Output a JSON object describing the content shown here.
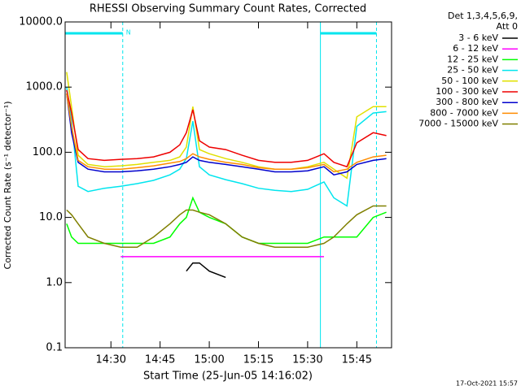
{
  "chart_data": {
    "type": "line",
    "title": "RHESSI Observing Summary Count Rates, Corrected",
    "x_label": "Start Time (25-Jun-05 14:16:02)",
    "y_label": "Corrected Count Rate (s⁻¹ detector⁻¹)",
    "footer": "17-Oct-2021 15:57",
    "legend_header": [
      "Det 1,3,4,5,6,9,",
      "Att 0"
    ],
    "legend_position": "outside-right",
    "log_y": true,
    "xlim": [
      856.03,
      955.6
    ],
    "ylim": [
      0.1,
      10000
    ],
    "xticks": [
      {
        "value": 870,
        "label": "14:30"
      },
      {
        "value": 885,
        "label": "14:45"
      },
      {
        "value": 900,
        "label": "15:00"
      },
      {
        "value": 915,
        "label": "15:15"
      },
      {
        "value": 930,
        "label": "15:30"
      },
      {
        "value": 945,
        "label": "15:45"
      }
    ],
    "yticks": [
      0.1,
      {
        "value": 1,
        "label": "1.0"
      },
      {
        "value": 10,
        "label": "10.0"
      },
      {
        "value": 100,
        "label": "100.0"
      },
      {
        "value": 1000,
        "label": "1000.0"
      },
      {
        "value": 10000,
        "label": "10000.0"
      }
    ],
    "flags": {
      "label": "N",
      "color": "#00e5ee",
      "intervals": [
        [
          856.03,
          873.6
        ],
        [
          933.9,
          951.0
        ]
      ]
    },
    "x": [
      856.5,
      858,
      860,
      863,
      868,
      873,
      878,
      883,
      888,
      891,
      893,
      895,
      897,
      900,
      905,
      910,
      915,
      920,
      925,
      930,
      935,
      938,
      942,
      945,
      950,
      954
    ],
    "series": [
      {
        "name": "3 - 6 keV",
        "color": "#000000",
        "values": [
          null,
          null,
          null,
          null,
          null,
          null,
          null,
          null,
          null,
          null,
          1.5,
          2,
          2,
          1.5,
          1.2,
          null,
          null,
          null,
          null,
          null,
          null,
          null,
          null,
          null,
          null,
          null
        ]
      },
      {
        "name": "6 - 12 keV",
        "color": "#ff00ff",
        "values": [
          null,
          null,
          null,
          null,
          null,
          2.5,
          2.5,
          2.5,
          2.5,
          2.5,
          2.5,
          2.5,
          2.5,
          2.5,
          2.5,
          2.5,
          2.5,
          2.5,
          2.5,
          2.5,
          2.5,
          null,
          null,
          null,
          null,
          null
        ]
      },
      {
        "name": "12 - 25 keV",
        "color": "#00ff00",
        "values": [
          8,
          5,
          4,
          4,
          4,
          4,
          4,
          4,
          5,
          8,
          10,
          20,
          12,
          10,
          8,
          5,
          4,
          4,
          4,
          4,
          5,
          5,
          5,
          5,
          10,
          12
        ]
      },
      {
        "name": "25 - 50 keV",
        "color": "#00e5ee",
        "values": [
          1000,
          300,
          30,
          25,
          28,
          30,
          33,
          37,
          45,
          55,
          80,
          300,
          60,
          45,
          38,
          33,
          28,
          26,
          25,
          27,
          35,
          20,
          15,
          250,
          400,
          420
        ]
      },
      {
        "name": "50 - 100 keV",
        "color": "#e0e000",
        "values": [
          1700,
          500,
          90,
          65,
          60,
          62,
          65,
          70,
          75,
          85,
          120,
          500,
          110,
          95,
          80,
          70,
          60,
          55,
          55,
          60,
          70,
          55,
          40,
          350,
          500,
          500
        ]
      },
      {
        "name": "100 - 300 keV",
        "color": "#ee0000",
        "values": [
          900,
          400,
          110,
          80,
          75,
          78,
          80,
          85,
          100,
          130,
          200,
          450,
          150,
          120,
          110,
          90,
          75,
          70,
          70,
          75,
          95,
          70,
          60,
          140,
          200,
          180
        ]
      },
      {
        "name": "300 - 800 keV",
        "color": "#0000cd",
        "values": [
          800,
          200,
          70,
          55,
          50,
          50,
          52,
          55,
          60,
          65,
          70,
          85,
          75,
          70,
          65,
          60,
          55,
          50,
          50,
          52,
          60,
          45,
          50,
          65,
          75,
          80
        ]
      },
      {
        "name": "800 - 7000 keV",
        "color": "#ff8c00",
        "values": [
          800,
          250,
          75,
          60,
          55,
          55,
          58,
          62,
          68,
          72,
          80,
          95,
          85,
          78,
          70,
          65,
          58,
          55,
          55,
          58,
          65,
          50,
          55,
          70,
          85,
          90
        ]
      },
      {
        "name": "7000 - 15000 keV",
        "color": "#808000",
        "values": [
          13,
          11,
          8,
          5,
          4,
          3.5,
          3.5,
          5,
          8,
          11,
          13,
          13,
          12,
          11,
          8,
          5,
          4,
          3.5,
          3.5,
          3.5,
          4,
          5,
          8,
          11,
          15,
          15
        ]
      }
    ]
  }
}
